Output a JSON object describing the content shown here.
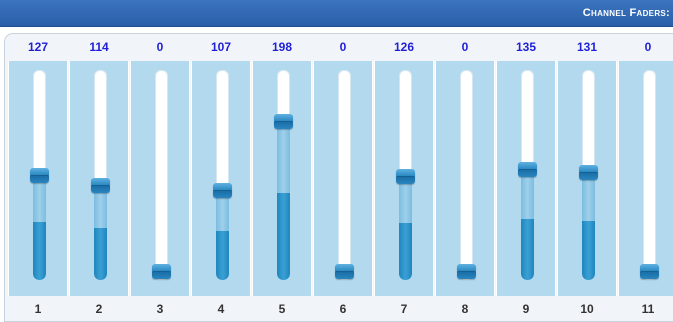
{
  "header": {
    "title": "Channel Faders:"
  },
  "channels": [
    {
      "number": "1",
      "value": "127",
      "level": 127
    },
    {
      "number": "2",
      "value": "114",
      "level": 114
    },
    {
      "number": "3",
      "value": "0",
      "level": 0
    },
    {
      "number": "4",
      "value": "107",
      "level": 107
    },
    {
      "number": "5",
      "value": "198",
      "level": 198
    },
    {
      "number": "6",
      "value": "0",
      "level": 0
    },
    {
      "number": "7",
      "value": "126",
      "level": 126
    },
    {
      "number": "8",
      "value": "0",
      "level": 0
    },
    {
      "number": "9",
      "value": "135",
      "level": 135
    },
    {
      "number": "10",
      "value": "131",
      "level": 131
    },
    {
      "number": "11",
      "value": "0",
      "level": 0
    }
  ],
  "max_level": 255,
  "colors": {
    "header_bg": "#2f66b0",
    "value_text": "#1f1fd6",
    "fader_bg": "#b3d9ef",
    "fill_dark": "#1f86be",
    "fill_light": "#8ec8e6"
  }
}
